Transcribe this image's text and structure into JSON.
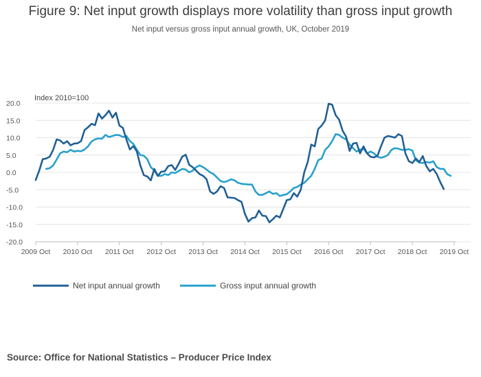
{
  "title": "Figure 9: Net input growth displays more volatility than gross input growth",
  "subtitle": "Net input versus gross input annual growth, UK, October 2019",
  "source": "Source: Office for National Statistics – Producer Price Index",
  "chart_data": {
    "type": "line",
    "ylabel": "Index 2010=100",
    "ylim": [
      -20,
      20
    ],
    "yticks": [
      -20,
      -15,
      -10,
      -5,
      0,
      5,
      10,
      15,
      20
    ],
    "ytick_labels": [
      "-20.0",
      "-15.0",
      "-10.0",
      "-5.0",
      "0.0",
      "5.0",
      "10.0",
      "15.0",
      "20.0"
    ],
    "xlim": [
      "2009 Oct",
      "2019 Oct"
    ],
    "xtick_labels": [
      "2009 Oct",
      "2010 Oct",
      "2011 Oct",
      "2012 Oct",
      "2013 Oct",
      "2014 Oct",
      "2015 Oct",
      "2016 Oct",
      "2017 Oct",
      "2018 Oct",
      "2019 Oct"
    ],
    "grid": "horizontal",
    "legend_position": "bottom-left",
    "series": [
      {
        "name": "Net input annual growth",
        "color": "#206095",
        "start": "2009 Oct",
        "values": [
          -2.2,
          0.5,
          3.8,
          4.0,
          4.5,
          6.5,
          9.5,
          9.2,
          8.3,
          9.0,
          7.8,
          8.3,
          8.4,
          9.0,
          12.2,
          13.0,
          14.0,
          13.6,
          17.0,
          15.5,
          16.5,
          17.8,
          15.8,
          17.2,
          13.5,
          12.8,
          9.5,
          6.6,
          7.6,
          6.0,
          2.0,
          -0.8,
          -1.2,
          -2.3,
          1.0,
          -1.0,
          0.2,
          0.3,
          1.8,
          2.1,
          0.7,
          2.5,
          4.5,
          5.1,
          2.2,
          1.5,
          0.5,
          -0.5,
          -1.0,
          -2.0,
          -5.5,
          -6.2,
          -5.5,
          -4.0,
          -4.5,
          -7.2,
          -7.3,
          -7.4,
          -8.0,
          -8.5,
          -12.0,
          -14.2,
          -13.2,
          -13.0,
          -11.0,
          -12.5,
          -12.6,
          -14.4,
          -13.5,
          -12.5,
          -13.0,
          -10.5,
          -8.0,
          -7.8,
          -6.0,
          -7.0,
          -5.0,
          0.0,
          3.0,
          8.0,
          7.5,
          12.5,
          13.5,
          15.0,
          19.8,
          19.5,
          16.5,
          15.2,
          12.0,
          10.3,
          6.2,
          8.3,
          8.5,
          5.5,
          7.5,
          5.5,
          4.5,
          4.3,
          4.8,
          7.5,
          10.0,
          10.5,
          10.3,
          10.0,
          11.0,
          10.5,
          5.5,
          3.2,
          2.7,
          4.0,
          3.0,
          4.7,
          1.8,
          0.3,
          1.0,
          -0.5,
          -2.8,
          -4.8
        ]
      },
      {
        "name": "Gross input annual growth",
        "color": "#27a0cc",
        "start": "2010 Jan",
        "values": [
          1.0,
          1.2,
          2.0,
          3.7,
          5.5,
          6.0,
          5.8,
          6.5,
          6.0,
          6.2,
          6.1,
          6.6,
          7.5,
          8.9,
          9.5,
          9.8,
          9.7,
          10.8,
          10.2,
          10.5,
          10.8,
          10.7,
          10.2,
          10.5,
          9.0,
          8.2,
          6.5,
          5.0,
          4.8,
          3.8,
          1.5,
          0.5,
          -1.0,
          -1.0,
          -0.5,
          -0.8,
          0.0,
          -0.2,
          0.4,
          1.0,
          0.8,
          0.0,
          0.5,
          1.5,
          2.0,
          1.5,
          0.8,
          0.0,
          -0.5,
          -1.5,
          -2.5,
          -2.8,
          -2.5,
          -2.0,
          -2.3,
          -3.0,
          -3.3,
          -3.4,
          -3.5,
          -3.5,
          -5.5,
          -6.5,
          -6.5,
          -6.0,
          -5.5,
          -6.2,
          -6.0,
          -6.8,
          -6.5,
          -6.3,
          -5.5,
          -4.5,
          -4.2,
          -3.5,
          -3.0,
          -2.0,
          -1.0,
          1.0,
          3.5,
          4.0,
          6.5,
          7.5,
          9.0,
          11.0,
          10.8,
          10.0,
          9.5,
          8.0,
          7.0,
          6.0,
          6.5,
          6.8,
          5.5,
          6.0,
          5.5,
          4.5,
          4.2,
          4.5,
          5.0,
          6.5,
          7.0,
          6.8,
          6.5,
          6.5,
          6.7,
          6.3,
          3.5,
          2.8,
          2.7,
          3.0,
          2.8,
          3.2,
          1.5,
          1.0,
          1.0,
          -0.5,
          -1.0
        ]
      }
    ]
  }
}
